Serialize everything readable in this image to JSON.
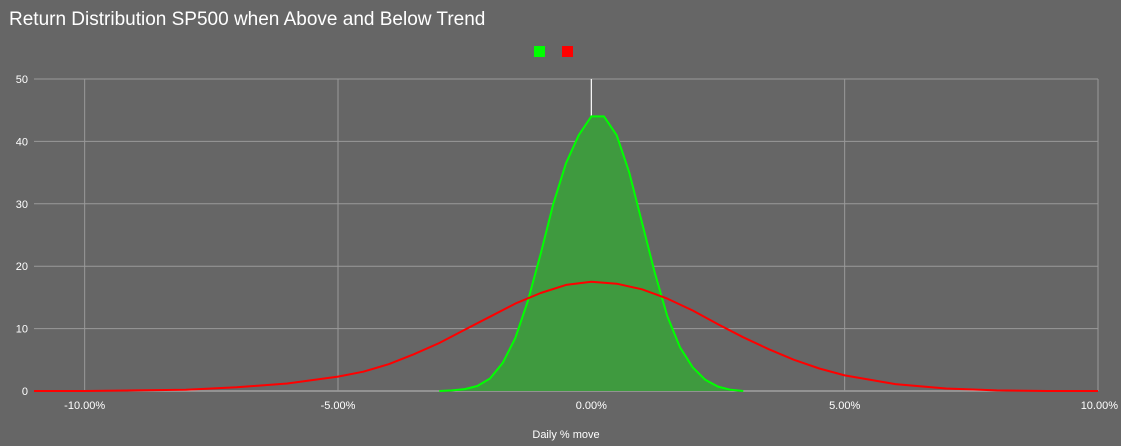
{
  "chart_data": {
    "type": "area",
    "title": "Return Distribution SP500 when Above and Below Trend",
    "xlabel": "Daily % move",
    "ylabel": "",
    "xlim": [
      -11,
      10
    ],
    "ylim": [
      0,
      50
    ],
    "x_ticks": [
      -10,
      -5,
      0,
      5,
      10
    ],
    "x_tick_labels": [
      "-10.00%",
      "-5.00%",
      "0.00%",
      "5.00%",
      "10.00%"
    ],
    "y_ticks": [
      0,
      10,
      20,
      30,
      40,
      50
    ],
    "y_tick_labels": [
      "0",
      "10",
      "20",
      "30",
      "40",
      "50"
    ],
    "grid": true,
    "legend_position": "top-center",
    "series": [
      {
        "color": "#00ff00",
        "fill": "#3f9a3f",
        "filled": true,
        "x": [
          -3.0,
          -2.75,
          -2.5,
          -2.25,
          -2.0,
          -1.75,
          -1.5,
          -1.25,
          -1.0,
          -0.75,
          -0.5,
          -0.25,
          0.0,
          0.25,
          0.5,
          0.75,
          1.0,
          1.25,
          1.5,
          1.75,
          2.0,
          2.25,
          2.5,
          2.75,
          3.0
        ],
        "values": [
          0,
          0.1,
          0.3,
          0.8,
          2.0,
          4.5,
          8.5,
          14.5,
          22.0,
          30.0,
          36.5,
          41.0,
          44.0,
          44.0,
          41.0,
          35.0,
          27.0,
          19.0,
          12.0,
          7.0,
          3.8,
          1.8,
          0.7,
          0.2,
          0
        ]
      },
      {
        "color": "#ff0000",
        "filled": false,
        "x": [
          -11.0,
          -10.0,
          -9.0,
          -8.0,
          -7.0,
          -6.0,
          -5.0,
          -4.5,
          -4.0,
          -3.5,
          -3.0,
          -2.5,
          -2.0,
          -1.5,
          -1.0,
          -0.5,
          0.0,
          0.5,
          1.0,
          1.5,
          2.0,
          2.5,
          3.0,
          3.5,
          4.0,
          4.5,
          5.0,
          6.0,
          7.0,
          8.0,
          9.0,
          10.0
        ],
        "values": [
          0.0,
          0.0,
          0.1,
          0.2,
          0.6,
          1.2,
          2.3,
          3.1,
          4.3,
          5.9,
          7.7,
          9.8,
          11.9,
          14.0,
          15.7,
          17.0,
          17.5,
          17.2,
          16.3,
          14.8,
          12.9,
          10.7,
          8.6,
          6.7,
          5.0,
          3.6,
          2.5,
          1.1,
          0.4,
          0.1,
          0.0,
          0.0
        ]
      }
    ]
  }
}
